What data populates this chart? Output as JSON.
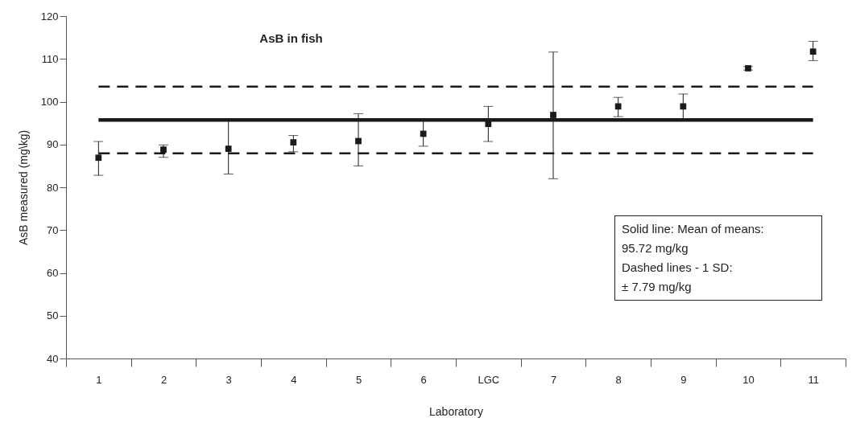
{
  "chart_data": {
    "type": "scatter",
    "title": "AsB in fish",
    "xlabel": "Laboratory",
    "ylabel": "AsB measured (mg\\kg)",
    "categories": [
      "1",
      "2",
      "3",
      "4",
      "5",
      "6",
      "LGC",
      "7",
      "8",
      "9",
      "10",
      "11"
    ],
    "series": [
      {
        "color": "#1a1a1a",
        "values": [
          86.9,
          88.8,
          89.0,
          90.5,
          90.8,
          92.5,
          94.8,
          96.9,
          98.9,
          98.9,
          107.8,
          111.7
        ],
        "errors": [
          [
            82.8,
            90.7
          ],
          [
            87.0,
            89.9
          ],
          [
            83.1,
            95.5
          ],
          [
            88.3,
            92.1
          ],
          [
            85.0,
            97.2
          ],
          [
            89.6,
            95.5
          ],
          [
            90.7,
            98.9
          ],
          [
            82.0,
            111.6
          ],
          [
            96.5,
            101.0
          ],
          [
            95.5,
            101.8
          ],
          [
            107.4,
            108.2
          ],
          [
            109.6,
            114.1
          ]
        ]
      }
    ],
    "marker": "square",
    "ylim": [
      40,
      120
    ],
    "yticks": [
      40,
      50,
      60,
      70,
      80,
      90,
      100,
      110,
      120
    ],
    "grid": false,
    "ref_lines": [
      {
        "axis": "y",
        "value": 95.72,
        "color": "#1a1a1a",
        "line_style": "solid"
      },
      {
        "axis": "y",
        "value": 103.51,
        "color": "#1a1a1a",
        "line_style": "dashed"
      },
      {
        "axis": "y",
        "value": 87.93,
        "color": "#1a1a1a",
        "line_style": "dashed"
      }
    ],
    "annotations": [
      "Solid line: Mean of means:",
      "95.72 mg/kg",
      "Dashed lines - 1 SD:",
      "± 7.79 mg/kg"
    ]
  }
}
